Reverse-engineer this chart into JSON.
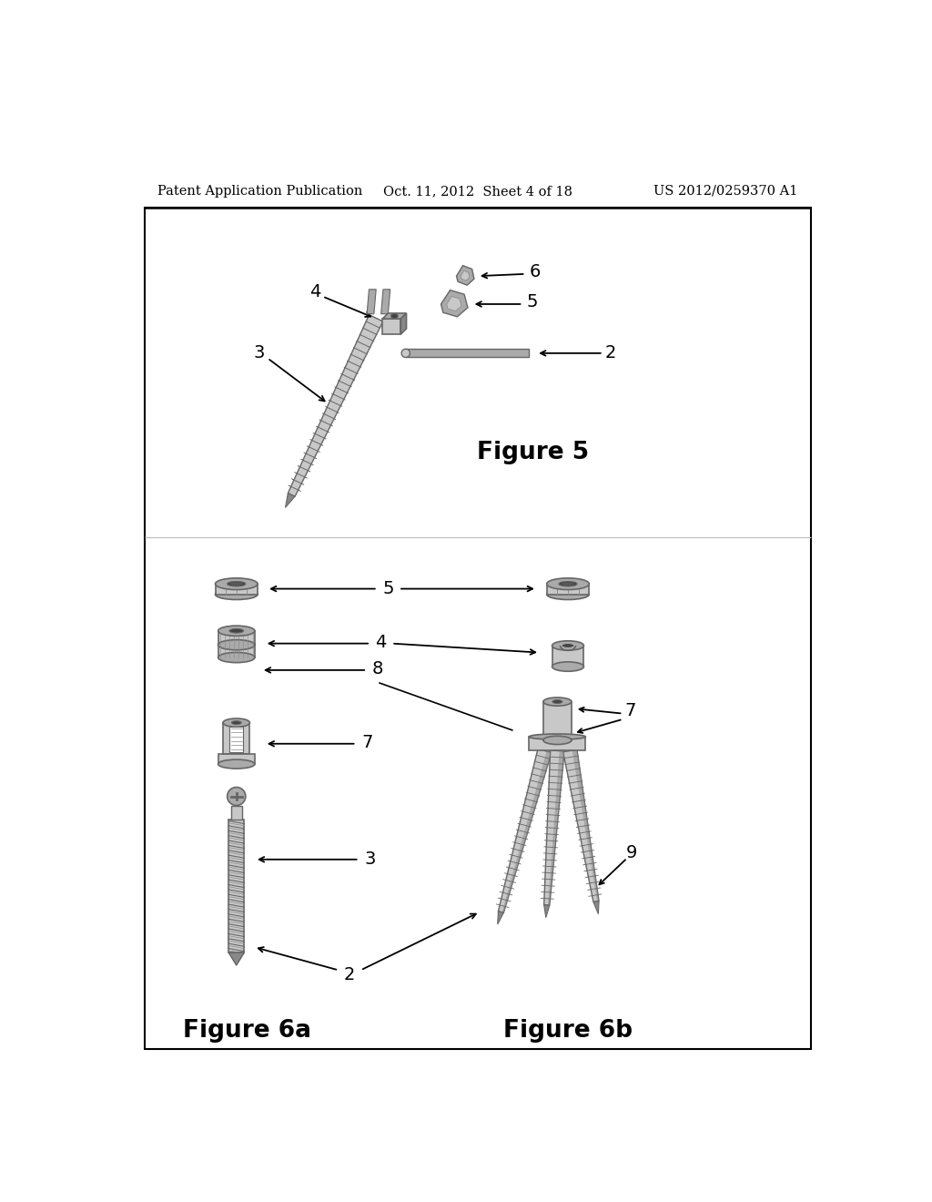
{
  "background_color": "#ffffff",
  "header_left": "Patent Application Publication",
  "header_center": "Oct. 11, 2012  Sheet 4 of 18",
  "header_right": "US 2012/0259370 A1",
  "header_fontsize": 10.5,
  "figure5_title": "Figure 5",
  "figure6a_title": "Figure 6a",
  "figure6b_title": "Figure 6b",
  "caption_fontsize": 19,
  "label_fontsize": 13,
  "gray1": "#c8c8c8",
  "gray2": "#aaaaaa",
  "gray3": "#888888",
  "gray4": "#666666",
  "gray5": "#444444",
  "white": "#ffffff",
  "black": "#000000"
}
